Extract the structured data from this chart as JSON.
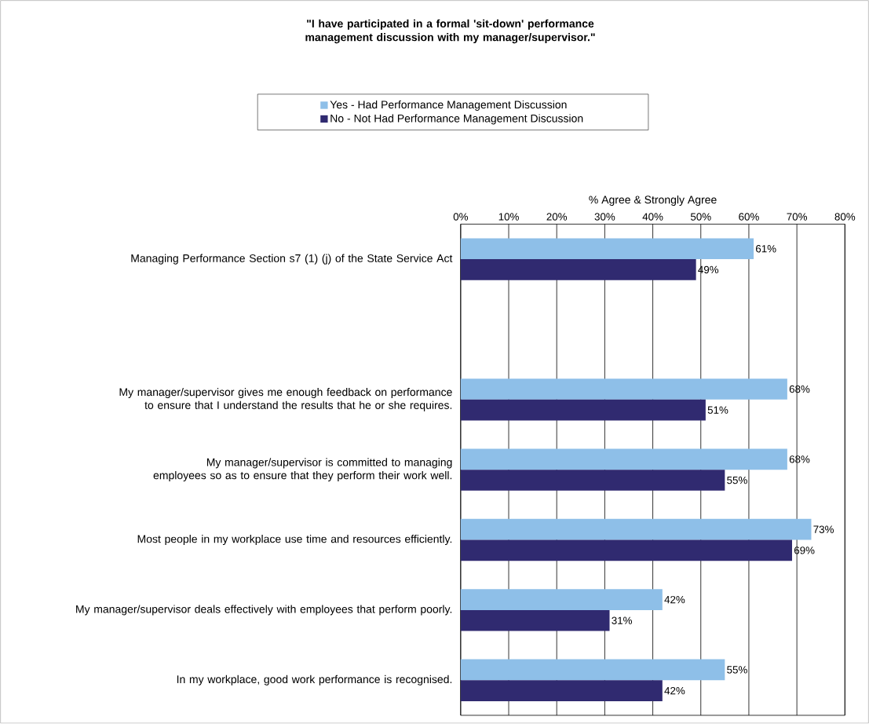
{
  "chart_data": {
    "type": "bar",
    "orientation": "horizontal",
    "title": "\"I have participated in a formal 'sit-down' performance management discussion with my manager/supervisor.\"",
    "xlabel": "% Agree & Strongly Agree",
    "categories": [
      "Managing Performance Section s7 (1) (j) of the State Service Act",
      null,
      "My manager/supervisor gives me enough feedback on performance to ensure that I understand the results that he or she requires.",
      "My manager/supervisor is committed to managing employees so as to ensure that they perform their work well.",
      "Most people in my workplace use time and resources efficiently.",
      "My manager/supervisor deals effectively with employees that perform poorly.",
      "In my workplace, good work performance is recognised."
    ],
    "series": [
      {
        "name": "Yes - Had Performance Management Discussion",
        "color": "#8ebfe8",
        "values": [
          61,
          null,
          68,
          68,
          73,
          42,
          55
        ],
        "value_labels": [
          "61%",
          null,
          "68%",
          "68%",
          "73%",
          "42%",
          "55%"
        ]
      },
      {
        "name": "No - Not Had Performance Management Discussion",
        "color": "#302a70",
        "values": [
          49,
          null,
          51,
          55,
          69,
          31,
          42
        ],
        "value_labels": [
          "49%",
          null,
          "51%",
          "55%",
          "69%",
          "31%",
          "42%"
        ]
      }
    ],
    "xlim": [
      0,
      80
    ],
    "xticks": [
      {
        "value": 0,
        "label": "0%"
      },
      {
        "value": 10,
        "label": "10%"
      },
      {
        "value": 20,
        "label": "20%"
      },
      {
        "value": 30,
        "label": "30%"
      },
      {
        "value": 40,
        "label": "40%"
      },
      {
        "value": 50,
        "label": "50%"
      },
      {
        "value": 60,
        "label": "60%"
      },
      {
        "value": 70,
        "label": "70%"
      },
      {
        "value": 80,
        "label": "80%"
      }
    ],
    "grid": "x",
    "legend": "top"
  }
}
